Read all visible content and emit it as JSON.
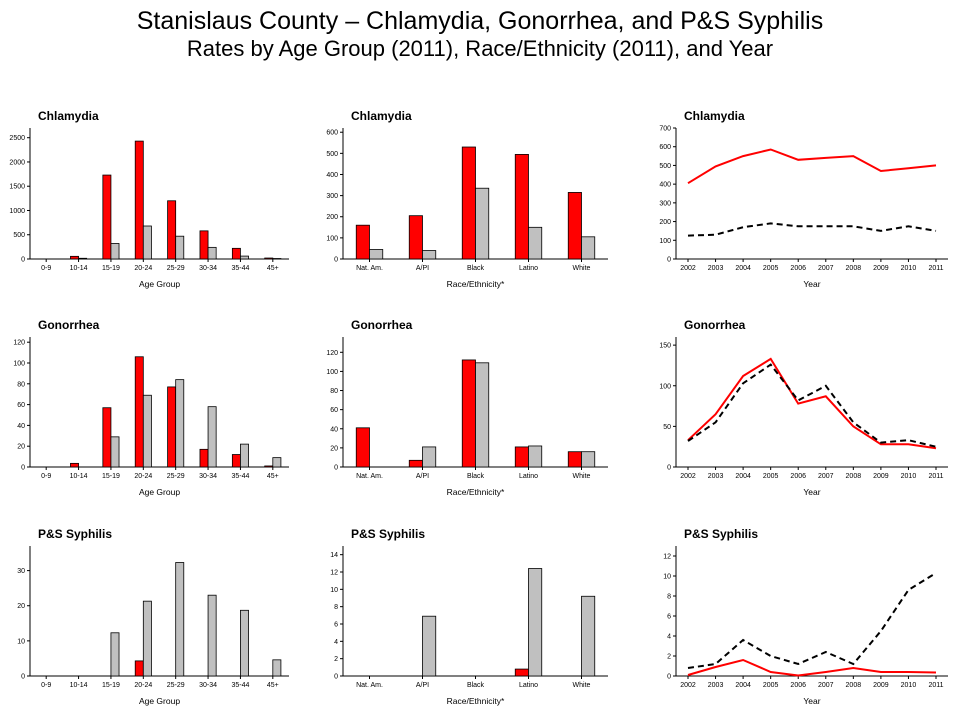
{
  "header": {
    "title": "Stanislaus County – Chlamydia, Gonorrhea, and P&S Syphilis",
    "subtitle": "Rates by Age Group (2011), Race/Ethnicity (2011), and Year"
  },
  "colors": {
    "county": "#ff0000",
    "state": "#c0c0c0",
    "outline": "#000000",
    "state_line": "#000000"
  },
  "chart_data": [
    {
      "id": "chlamydia-age",
      "type": "bar",
      "title": "Chlamydia",
      "xlabel": "Age Group",
      "categories": [
        "0-9",
        "10-14",
        "15-19",
        "20-24",
        "25-29",
        "30-34",
        "35-44",
        "45+"
      ],
      "series": [
        {
          "values": [
            0,
            55,
            1730,
            2430,
            1200,
            580,
            220,
            20
          ]
        },
        {
          "values": [
            0,
            15,
            320,
            680,
            470,
            240,
            60,
            10
          ]
        }
      ],
      "ylim": [
        0,
        2700
      ],
      "yticks": [
        0,
        500,
        1000,
        1500,
        2000,
        2500
      ]
    },
    {
      "id": "chlamydia-race",
      "type": "bar",
      "title": "Chlamydia",
      "xlabel": "Race/Ethnicity*",
      "categories": [
        "Nat. Am.",
        "A/PI",
        "Black",
        "Latino",
        "White"
      ],
      "series": [
        {
          "values": [
            160,
            205,
            530,
            495,
            315
          ]
        },
        {
          "values": [
            45,
            40,
            335,
            150,
            105
          ]
        }
      ],
      "ylim": [
        0,
        620
      ],
      "yticks": [
        0,
        100,
        200,
        300,
        400,
        500,
        600
      ]
    },
    {
      "id": "chlamydia-year",
      "type": "line",
      "title": "Chlamydia",
      "xlabel": "Year",
      "x": [
        "2002",
        "2003",
        "2004",
        "2005",
        "2006",
        "2007",
        "2008",
        "2009",
        "2010",
        "2011"
      ],
      "series": [
        {
          "style": "solid",
          "values": [
            405,
            495,
            550,
            585,
            530,
            540,
            550,
            470,
            485,
            500
          ]
        },
        {
          "style": "dashed",
          "values": [
            125,
            130,
            170,
            190,
            175,
            175,
            175,
            150,
            175,
            150
          ]
        }
      ],
      "ylim": [
        0,
        700
      ],
      "yticks": [
        0,
        100,
        200,
        300,
        400,
        500,
        600,
        700
      ]
    },
    {
      "id": "gonorrhea-age",
      "type": "bar",
      "title": "Gonorrhea",
      "xlabel": "Age Group",
      "categories": [
        "0-9",
        "10-14",
        "15-19",
        "20-24",
        "25-29",
        "30-34",
        "35-44",
        "45+"
      ],
      "series": [
        {
          "values": [
            0,
            3.5,
            57,
            106,
            77,
            17,
            12,
            1
          ]
        },
        {
          "values": [
            0,
            0,
            29,
            69,
            84,
            58,
            22,
            9
          ]
        }
      ],
      "ylim": [
        0,
        125
      ],
      "yticks": [
        0,
        20,
        40,
        60,
        80,
        100,
        120
      ]
    },
    {
      "id": "gonorrhea-race",
      "type": "bar",
      "title": "Gonorrhea",
      "xlabel": "Race/Ethnicity*",
      "categories": [
        "Nat. Am.",
        "A/PI",
        "Black",
        "Latino",
        "White"
      ],
      "series": [
        {
          "values": [
            41,
            7,
            112,
            21,
            16
          ]
        },
        {
          "values": [
            0,
            21,
            109,
            22,
            16
          ]
        }
      ],
      "ylim": [
        0,
        136
      ],
      "yticks": [
        0,
        20,
        40,
        60,
        80,
        100,
        120
      ]
    },
    {
      "id": "gonorrhea-year",
      "type": "line",
      "title": "Gonorrhea",
      "xlabel": "Year",
      "x": [
        "2002",
        "2003",
        "2004",
        "2005",
        "2006",
        "2007",
        "2008",
        "2009",
        "2010",
        "2011"
      ],
      "series": [
        {
          "style": "solid",
          "values": [
            33,
            65,
            112,
            133,
            78,
            87,
            50,
            28,
            28,
            23
          ]
        },
        {
          "style": "dashed",
          "values": [
            32,
            55,
            103,
            126,
            82,
            100,
            55,
            30,
            33,
            25
          ]
        }
      ],
      "ylim": [
        0,
        160
      ],
      "yticks": [
        0,
        50,
        100,
        150
      ]
    },
    {
      "id": "syphilis-age",
      "type": "bar",
      "title": "P&S Syphilis",
      "xlabel": "Age Group",
      "categories": [
        "0-9",
        "10-14",
        "15-19",
        "20-24",
        "25-29",
        "30-34",
        "35-44",
        "45+"
      ],
      "series": [
        {
          "values": [
            0,
            0,
            0,
            4.3,
            0,
            0,
            0,
            0
          ]
        },
        {
          "values": [
            0,
            0,
            12.3,
            21.3,
            32.3,
            23,
            18.7,
            4.6
          ]
        }
      ],
      "ylim": [
        0,
        37
      ],
      "yticks": [
        0,
        10,
        20,
        30
      ]
    },
    {
      "id": "syphilis-race",
      "type": "bar",
      "title": "P&S Syphilis",
      "xlabel": "Race/Ethnicity*",
      "categories": [
        "Nat. Am.",
        "A/PI",
        "Black",
        "Latino",
        "White"
      ],
      "series": [
        {
          "values": [
            0,
            0,
            0,
            0.8,
            0
          ]
        },
        {
          "values": [
            0,
            6.9,
            0,
            12.4,
            9.2
          ]
        }
      ],
      "ylim": [
        0,
        15
      ],
      "yticks": [
        0,
        2,
        4,
        6,
        8,
        10,
        12,
        14
      ]
    },
    {
      "id": "syphilis-year",
      "type": "line",
      "title": "P&S Syphilis",
      "xlabel": "Year",
      "x": [
        "2002",
        "2003",
        "2004",
        "2005",
        "2006",
        "2007",
        "2008",
        "2009",
        "2010",
        "2011"
      ],
      "series": [
        {
          "style": "solid",
          "values": [
            0.1,
            0.9,
            1.6,
            0.4,
            0.05,
            0.4,
            0.8,
            0.4,
            0.4,
            0.35
          ]
        },
        {
          "style": "dashed",
          "values": [
            0.8,
            1.2,
            3.6,
            2.0,
            1.2,
            2.4,
            1.2,
            4.5,
            8.6,
            10.3
          ]
        }
      ],
      "ylim": [
        0,
        13
      ],
      "yticks": [
        0,
        2,
        4,
        6,
        8,
        10,
        12
      ]
    }
  ]
}
